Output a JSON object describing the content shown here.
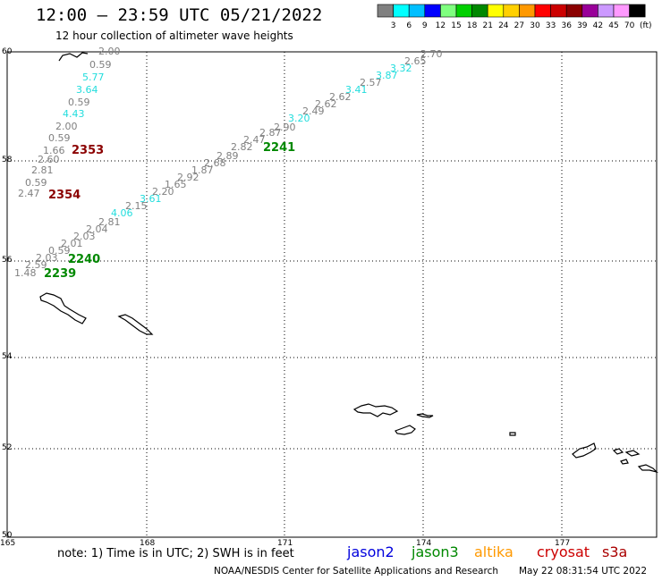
{
  "header": {
    "title": "12:00 – 23:59 UTC 05/21/2022",
    "subtitle": "12 hour collection of altimeter wave heights"
  },
  "colorbar": {
    "labels": [
      "3",
      "6",
      "9",
      "12",
      "15",
      "18",
      "21",
      "24",
      "27",
      "30",
      "33",
      "36",
      "39",
      "42",
      "45",
      "70"
    ],
    "unit": "(ft)",
    "colors": [
      "#808080",
      "#00ffff",
      "#00bfff",
      "#0000ff",
      "#7fff7f",
      "#00d000",
      "#008800",
      "#ffff00",
      "#ffd000",
      "#ff9900",
      "#ff0000",
      "#cc0000",
      "#8b0000",
      "#990099",
      "#cc99ff",
      "#ff99ff",
      "#000000"
    ]
  },
  "map": {
    "lon_ticks": [
      "165",
      "168",
      "171",
      "174",
      "177"
    ],
    "lat_ticks": [
      "60",
      "58",
      "56",
      "54",
      "52",
      "50"
    ]
  },
  "passes": [
    {
      "label": "2353",
      "color": "#8b0000"
    },
    {
      "label": "2354",
      "color": "#8b0000"
    },
    {
      "label": "2241",
      "color": "#008800"
    },
    {
      "label": "2240",
      "color": "#008800"
    },
    {
      "label": "2239",
      "color": "#008800"
    }
  ],
  "wave_heights": {
    "track_a": [
      "2.00",
      "0.59",
      "5.77",
      "3.64",
      "0.59",
      "4.43",
      "2.00",
      "0.59",
      "1.66",
      "2.60",
      "2.81",
      "0.59",
      "2.47"
    ],
    "track_b": [
      "1.48",
      "2.59",
      "2.03",
      "0.59",
      "2.01",
      "2.03",
      "2.04",
      "2.81",
      "4.06",
      "2.15",
      "3.61",
      "2.20",
      "1.65",
      "2.92",
      "1.87",
      "2.68",
      "2.89",
      "2.82",
      "2.47",
      "2.87",
      "2.90",
      "3.20",
      "2.49",
      "2.62",
      "2.62",
      "3.41",
      "2.57",
      "3.87",
      "3.32",
      "2.65",
      "2.70"
    ],
    "gray_color": "#808080",
    "cyan_color": "#22dddd"
  },
  "footer": {
    "note": "note: 1) Time is in UTC; 2) SWH is in feet",
    "credit": "NOAA/NESDIS Center for Satellite Applications and Research",
    "timestamp": "May 22 08:31:54 UTC 2022"
  },
  "satellites": [
    {
      "name": "jason2",
      "color": "#0000dd"
    },
    {
      "name": "jason3",
      "color": "#008800"
    },
    {
      "name": "altika",
      "color": "#ff9900"
    },
    {
      "name": "cryosat",
      "color": "#cc0000"
    },
    {
      "name": "s3a",
      "color": "#aa0000"
    }
  ]
}
